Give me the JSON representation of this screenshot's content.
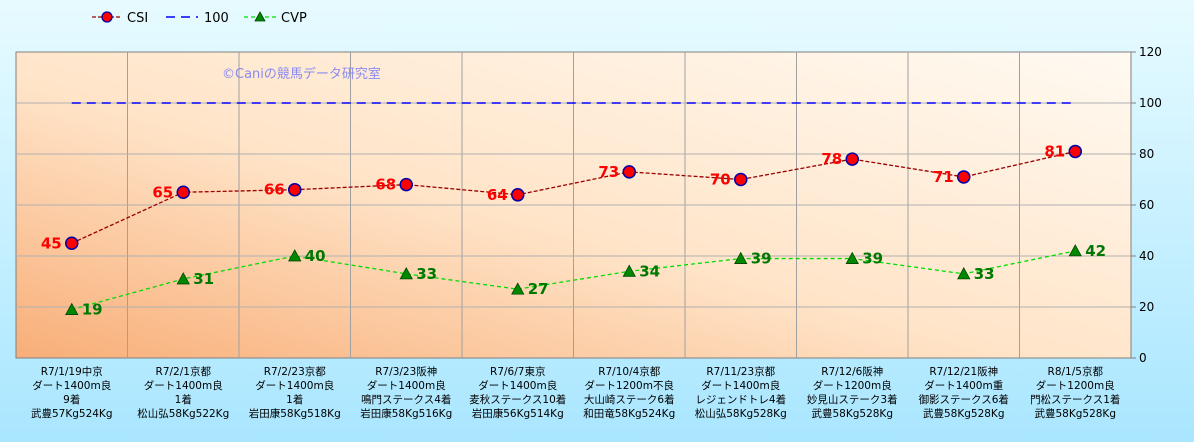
{
  "chart_data": {
    "type": "line",
    "watermark": "©Caniの競馬データ研究室",
    "categories": [
      [
        "R7/1/19中京",
        "ダート1400m良",
        "9着",
        "武豊57Kg524Kg"
      ],
      [
        "R7/2/1京都",
        "ダート1400m良",
        "1着",
        "松山弘58Kg522Kg"
      ],
      [
        "R7/2/23京都",
        "ダート1400m良",
        "1着",
        "岩田康58Kg518Kg"
      ],
      [
        "R7/3/23阪神",
        "ダート1400m良",
        "鳴門ステークス4着",
        "岩田康58Kg516Kg"
      ],
      [
        "R7/6/7東京",
        "ダート1400m良",
        "麦秋ステークス10着",
        "岩田康56Kg514Kg"
      ],
      [
        "R7/10/4京都",
        "ダート1200m不良",
        "大山崎ステーク6着",
        "和田竜58Kg524Kg"
      ],
      [
        "R7/11/23京都",
        "ダート1400m良",
        "レジェンドトレ4着",
        "松山弘58Kg528Kg"
      ],
      [
        "R7/12/6阪神",
        "ダート1200m良",
        "妙見山ステーク3着",
        "武豊58Kg528Kg"
      ],
      [
        "R7/12/21阪神",
        "ダート1400m重",
        "御影ステークス6着",
        "武豊58Kg528Kg"
      ],
      [
        "R8/1/5京都",
        "ダート1200m良",
        "門松ステークス1着",
        "武豊58Kg528Kg"
      ]
    ],
    "series": [
      {
        "name": "CSI",
        "values": [
          45,
          65,
          66,
          68,
          64,
          73,
          70,
          78,
          71,
          81
        ],
        "color": "#990000",
        "marker": "circle",
        "marker_color": "#ff0000"
      },
      {
        "name": "100",
        "values": [
          100,
          100,
          100,
          100,
          100,
          100,
          100,
          100,
          100,
          100
        ],
        "color": "#0000ff",
        "marker": "none"
      },
      {
        "name": "CVP",
        "values": [
          19,
          31,
          40,
          33,
          27,
          34,
          39,
          39,
          33,
          42
        ],
        "color": "#00dd00",
        "marker": "triangle",
        "marker_color": "#008800"
      }
    ],
    "ylim": [
      0,
      120
    ],
    "yticks": [
      0,
      20,
      40,
      60,
      80,
      100,
      120
    ],
    "y_axis_side": "right",
    "grid": true,
    "legend_position": "top-left",
    "colors": {
      "plot_bg_top": "#fff8ef",
      "plot_bg_bottom": "#f9b27f",
      "page_bg": "#c6f1ff"
    }
  }
}
